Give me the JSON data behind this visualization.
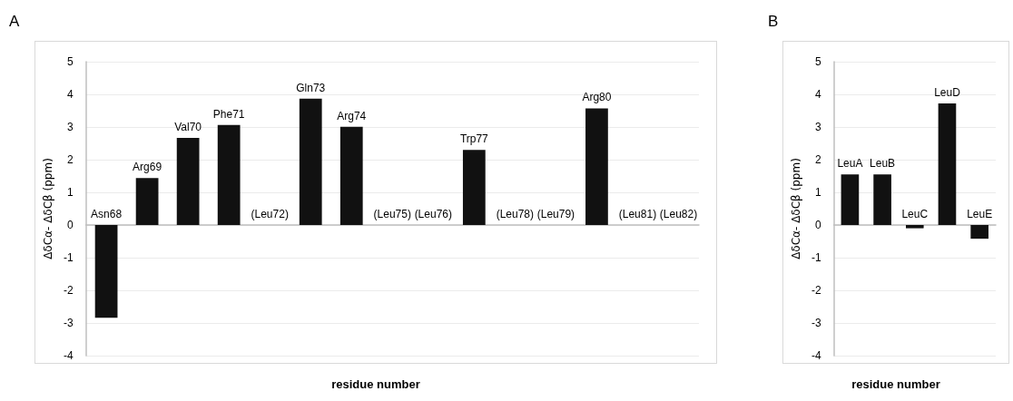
{
  "chart_data": [
    {
      "type": "bar",
      "title": "A",
      "xlabel": "residue number",
      "ylabel": "ΔδCα- ΔδCβ (ppm)",
      "categories": [
        "Asn68",
        "Arg69",
        "Val70",
        "Phe71",
        "(Leu72)",
        "Gln73",
        "Arg74",
        "(Leu75)",
        "(Leu76)",
        "Trp77",
        "(Leu78)",
        "(Leu79)",
        "Arg80",
        "(Leu81)",
        "(Leu82)"
      ],
      "values": [
        -2.84,
        1.44,
        2.67,
        3.06,
        null,
        3.87,
        3.01,
        null,
        null,
        2.3,
        null,
        null,
        3.57,
        null,
        null
      ],
      "color": "#111111",
      "ylim": [
        -4,
        5
      ],
      "yticks": [
        -4,
        -3,
        -2,
        -1,
        0,
        1,
        2,
        3,
        4,
        5
      ],
      "grid": "y"
    },
    {
      "type": "bar",
      "title": "B",
      "xlabel": "residue number",
      "ylabel": "ΔδCα- ΔδCβ (ppm)",
      "categories": [
        "LeuA",
        "LeuB",
        "LeuC",
        "LeuD",
        "LeuE"
      ],
      "values": [
        1.55,
        1.55,
        -0.1,
        3.72,
        -0.42
      ],
      "color": "#111111",
      "ylim": [
        -4,
        5
      ],
      "yticks": [
        -4,
        -3,
        -2,
        -1,
        0,
        1,
        2,
        3,
        4,
        5
      ],
      "grid": "y"
    }
  ]
}
